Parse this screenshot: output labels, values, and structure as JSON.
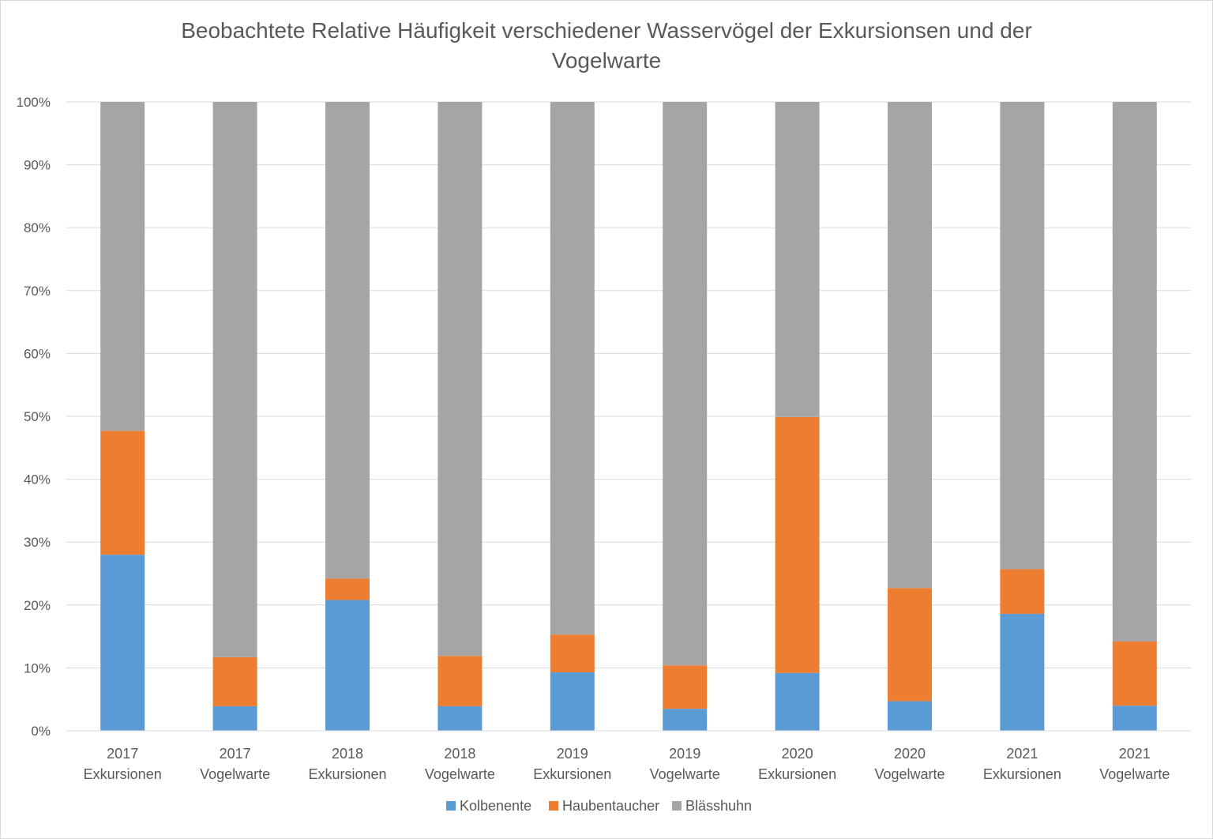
{
  "chart_data": {
    "type": "bar",
    "stacked": "percent",
    "title_lines": [
      "Beobachtete Relative Häufigkeit verschiedener Wasservögel der Exkursionsen und der",
      "Vogelwarte"
    ],
    "categories": [
      [
        "2017",
        "Exkursionen"
      ],
      [
        "2017",
        "Vogelwarte"
      ],
      [
        "2018",
        "Exkursionen"
      ],
      [
        "2018",
        "Vogelwarte"
      ],
      [
        "2019",
        "Exkursionen"
      ],
      [
        "2019",
        "Vogelwarte"
      ],
      [
        "2020",
        "Exkursionen"
      ],
      [
        "2020",
        "Vogelwarte"
      ],
      [
        "2021",
        "Exkursionen"
      ],
      [
        "2021",
        "Vogelwarte"
      ]
    ],
    "series": [
      {
        "name": "Kolbenente",
        "color": "#5b9bd5",
        "values": [
          28.0,
          3.9,
          20.8,
          3.9,
          9.3,
          3.5,
          9.2,
          4.7,
          18.6,
          4.0
        ]
      },
      {
        "name": "Haubentaucher",
        "color": "#ed7d31",
        "values": [
          19.7,
          7.8,
          3.4,
          8.0,
          6.0,
          6.9,
          40.7,
          18.0,
          7.1,
          10.2
        ]
      },
      {
        "name": "Blässhuhn",
        "color": "#a5a5a5",
        "values": [
          52.3,
          88.3,
          75.8,
          88.1,
          84.7,
          89.6,
          50.1,
          77.3,
          74.3,
          85.8
        ]
      }
    ],
    "ylim": [
      0,
      100
    ],
    "yticks": [
      0,
      10,
      20,
      30,
      40,
      50,
      60,
      70,
      80,
      90,
      100
    ],
    "ytick_labels": [
      "0%",
      "10%",
      "20%",
      "30%",
      "40%",
      "50%",
      "60%",
      "70%",
      "80%",
      "90%",
      "100%"
    ],
    "grid": true,
    "legend_position": "bottom"
  }
}
